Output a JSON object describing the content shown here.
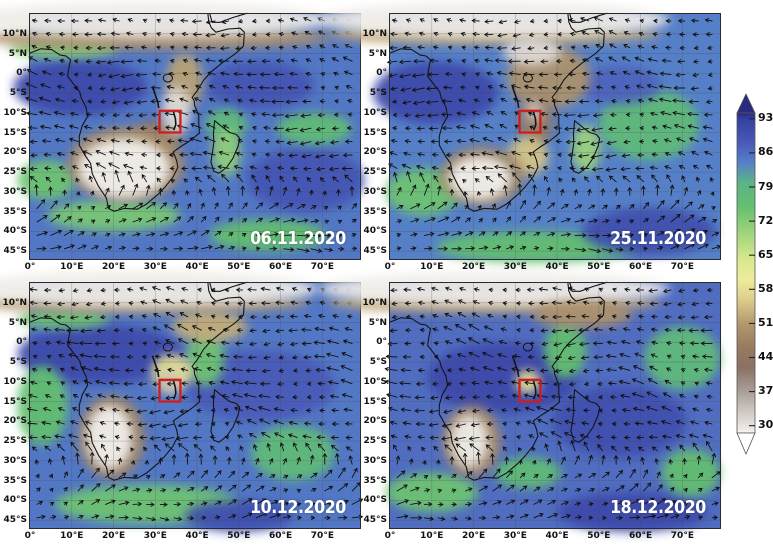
{
  "chart_data": {
    "type": "heatmap",
    "layout": "2x2 geographic map panels with wind vectors and shared vertical colorbar",
    "panels": [
      {
        "date": "06.11.2020",
        "base": 85,
        "regions": [
          {
            "lon": 12,
            "lat": -3.5,
            "rx": 16,
            "ry": 7,
            "v": 91
          },
          {
            "lon": 55,
            "lat": -3,
            "rx": 13,
            "ry": 6,
            "v": 89
          },
          {
            "lon": 66,
            "lat": -27,
            "rx": 14,
            "ry": 8,
            "v": 89
          },
          {
            "lon": 68,
            "lat": -14,
            "rx": 9,
            "ry": 4,
            "v": 76
          },
          {
            "lon": 47,
            "lat": -13,
            "rx": 5,
            "ry": 4,
            "v": 77
          },
          {
            "lon": 8,
            "lat": 6.3,
            "rx": 13,
            "ry": 2.5,
            "v": 72
          },
          {
            "lon": 20,
            "lat": -36,
            "rx": 16,
            "ry": 4,
            "v": 73
          },
          {
            "lon": 57,
            "lat": -41,
            "rx": 14,
            "ry": 4,
            "v": 75
          },
          {
            "lon": 4,
            "lat": -27,
            "rx": 7,
            "ry": 5,
            "v": 74
          },
          {
            "lon": 30,
            "lat": 9,
            "rx": 42,
            "ry": 3,
            "v": 50
          },
          {
            "lon": 28,
            "lat": 13.5,
            "rx": 44,
            "ry": 4.5,
            "v": 29
          },
          {
            "lon": 37,
            "lat": -2,
            "rx": 4.5,
            "ry": 7,
            "v": 52
          },
          {
            "lon": 30.5,
            "lat": -16,
            "rx": 6,
            "ry": 4,
            "v": 45
          },
          {
            "lon": 23,
            "lat": -23,
            "rx": 14,
            "ry": 9.5,
            "v": 49
          },
          {
            "lon": 22.5,
            "lat": -24,
            "rx": 11,
            "ry": 7.5,
            "v": 28
          },
          {
            "lon": 35,
            "lat": -9.5,
            "rx": 3.5,
            "ry": 6,
            "v": 31
          },
          {
            "lon": 47,
            "lat": -20,
            "rx": 3.5,
            "ry": 6,
            "v": 71
          }
        ]
      },
      {
        "date": "25.11.2020",
        "base": 84,
        "regions": [
          {
            "lon": 11,
            "lat": -5,
            "rx": 15,
            "ry": 8,
            "v": 91
          },
          {
            "lon": 62,
            "lat": -13,
            "rx": 12,
            "ry": 9,
            "v": 77
          },
          {
            "lon": 55,
            "lat": -3,
            "rx": 10,
            "ry": 5,
            "v": 87
          },
          {
            "lon": 8,
            "lat": -30,
            "rx": 9,
            "ry": 6,
            "v": 74
          },
          {
            "lon": 35,
            "lat": -44,
            "rx": 24,
            "ry": 4,
            "v": 75
          },
          {
            "lon": 62,
            "lat": -40,
            "rx": 16,
            "ry": 6,
            "v": 90
          },
          {
            "lon": 25,
            "lat": 9.8,
            "rx": 40,
            "ry": 2.6,
            "v": 52
          },
          {
            "lon": 25,
            "lat": 13.5,
            "rx": 42,
            "ry": 4.5,
            "v": 29
          },
          {
            "lon": 38,
            "lat": -1,
            "rx": 10,
            "ry": 8,
            "v": 50
          },
          {
            "lon": 34,
            "lat": 5.5,
            "rx": 7,
            "ry": 3.5,
            "v": 31
          },
          {
            "lon": 35,
            "lat": -12,
            "rx": 4,
            "ry": 6.5,
            "v": 46
          },
          {
            "lon": 34.5,
            "lat": -9.5,
            "rx": 2,
            "ry": 3,
            "v": 34
          },
          {
            "lon": 33,
            "lat": -21,
            "rx": 5,
            "ry": 5,
            "v": 55
          },
          {
            "lon": 22,
            "lat": -26,
            "rx": 10,
            "ry": 7.5,
            "v": 48
          },
          {
            "lon": 21.5,
            "lat": -26.5,
            "rx": 7.5,
            "ry": 5.5,
            "v": 28
          },
          {
            "lon": 47,
            "lat": -19,
            "rx": 3.5,
            "ry": 6,
            "v": 70
          }
        ]
      },
      {
        "date": "10.12.2020",
        "base": 85,
        "regions": [
          {
            "lon": 17,
            "lat": -3,
            "rx": 20,
            "ry": 7.5,
            "v": 91
          },
          {
            "lon": 55,
            "lat": -11,
            "rx": 18,
            "ry": 9,
            "v": 88
          },
          {
            "lon": 3,
            "lat": -16,
            "rx": 6,
            "ry": 10,
            "v": 75
          },
          {
            "lon": 8,
            "lat": 6,
            "rx": 11,
            "ry": 2.5,
            "v": 74
          },
          {
            "lon": 63,
            "lat": -28,
            "rx": 10,
            "ry": 7,
            "v": 77
          },
          {
            "lon": 28,
            "lat": -41,
            "rx": 22,
            "ry": 5,
            "v": 74
          },
          {
            "lon": 50,
            "lat": -44,
            "rx": 13,
            "ry": 4,
            "v": 90
          },
          {
            "lon": 42,
            "lat": -4,
            "rx": 4.5,
            "ry": 7,
            "v": 74
          },
          {
            "lon": 27,
            "lat": 10,
            "rx": 40,
            "ry": 2.6,
            "v": 51
          },
          {
            "lon": 27,
            "lat": 13.5,
            "rx": 42,
            "ry": 4.5,
            "v": 29
          },
          {
            "lon": 43,
            "lat": 4,
            "rx": 9,
            "ry": 4,
            "v": 53
          },
          {
            "lon": 34,
            "lat": -7.5,
            "rx": 5,
            "ry": 4.5,
            "v": 58
          },
          {
            "lon": 33.5,
            "lat": -10.5,
            "rx": 2.4,
            "ry": 2.8,
            "v": 34
          },
          {
            "lon": 19.5,
            "lat": -24,
            "rx": 8,
            "ry": 10.5,
            "v": 48
          },
          {
            "lon": 19,
            "lat": -24,
            "rx": 5.5,
            "ry": 8,
            "v": 28
          }
        ]
      },
      {
        "date": "18.12.2020",
        "base": 86,
        "regions": [
          {
            "lon": 27,
            "lat": -9,
            "rx": 18,
            "ry": 9,
            "v": 91
          },
          {
            "lon": 55,
            "lat": -20,
            "rx": 16,
            "ry": 9,
            "v": 90
          },
          {
            "lon": 58,
            "lat": -43,
            "rx": 18,
            "ry": 5,
            "v": 91
          },
          {
            "lon": 70,
            "lat": -4,
            "rx": 9,
            "ry": 8,
            "v": 77
          },
          {
            "lon": 72,
            "lat": -33,
            "rx": 7,
            "ry": 6,
            "v": 75
          },
          {
            "lon": 42,
            "lat": -2,
            "rx": 5,
            "ry": 7,
            "v": 75
          },
          {
            "lon": 10,
            "lat": -38,
            "rx": 11,
            "ry": 5,
            "v": 74
          },
          {
            "lon": 33,
            "lat": -33,
            "rx": 8,
            "ry": 4,
            "v": 76
          },
          {
            "lon": 25,
            "lat": 10,
            "rx": 40,
            "ry": 2.6,
            "v": 52
          },
          {
            "lon": 25,
            "lat": 13.5,
            "rx": 42,
            "ry": 4.2,
            "v": 29
          },
          {
            "lon": 46,
            "lat": 7,
            "rx": 12,
            "ry": 3.5,
            "v": 50
          },
          {
            "lon": 33,
            "lat": -10,
            "rx": 3,
            "ry": 3,
            "v": 58
          },
          {
            "lon": 19.5,
            "lat": -25,
            "rx": 7,
            "ry": 9,
            "v": 49
          },
          {
            "lon": 19,
            "lat": -25,
            "rx": 4.5,
            "ry": 6.5,
            "v": 29
          }
        ]
      }
    ],
    "axes": {
      "lon_range": [
        0,
        79
      ],
      "lat_range": [
        -47,
        15
      ],
      "x_tick_lons": [
        0,
        10,
        20,
        30,
        40,
        50,
        60,
        70
      ],
      "x_tick_labels": [
        "0°",
        "10°E",
        "20°E",
        "30°E",
        "40°E",
        "50°E",
        "60°E",
        "70°E"
      ],
      "y_tick_lats": [
        10,
        5,
        0,
        -5,
        -10,
        -15,
        -20,
        -25,
        -30,
        -35,
        -40,
        -45
      ],
      "y_tick_labels": [
        "10°N",
        "5°N",
        "0°",
        "5°S",
        "10°S",
        "15°S",
        "20°S",
        "25°S",
        "30°S",
        "35°S",
        "40°S",
        "45°S"
      ],
      "grid": true
    },
    "colorbar": {
      "orientation": "vertical",
      "position": "right",
      "tick_values": [
        93,
        86,
        79,
        72,
        65,
        58,
        51,
        44,
        37,
        30
      ],
      "tick_labels": [
        "93",
        "86",
        "79",
        "72",
        "65",
        "58",
        "51",
        "44",
        "37",
        "30"
      ],
      "value_top": 94.2,
      "value_bottom": 28.5,
      "gradient": [
        {
          "v": 97,
          "c": "#282b7e"
        },
        {
          "v": 93,
          "c": "#3340a0"
        },
        {
          "v": 88,
          "c": "#4a5ab8"
        },
        {
          "v": 84,
          "c": "#5580c8"
        },
        {
          "v": 80,
          "c": "#5bb388"
        },
        {
          "v": 75,
          "c": "#63c06e"
        },
        {
          "v": 69,
          "c": "#a6d77d"
        },
        {
          "v": 64,
          "c": "#d9e88c"
        },
        {
          "v": 60,
          "c": "#efec9c"
        },
        {
          "v": 56,
          "c": "#ddcf8b"
        },
        {
          "v": 51,
          "c": "#b3986f"
        },
        {
          "v": 46,
          "c": "#977a5f"
        },
        {
          "v": 42,
          "c": "#8a7164"
        },
        {
          "v": 37,
          "c": "#ab9f99"
        },
        {
          "v": 32,
          "c": "#d8d1cb"
        },
        {
          "v": 29,
          "c": "#efece8"
        },
        {
          "v": 25,
          "c": "#ffffff"
        }
      ]
    },
    "highlight_box": {
      "lon_min": 31,
      "lon_max": 36,
      "lat_min": -15,
      "lat_max": -9.5,
      "color": "#cf1d1d"
    }
  }
}
